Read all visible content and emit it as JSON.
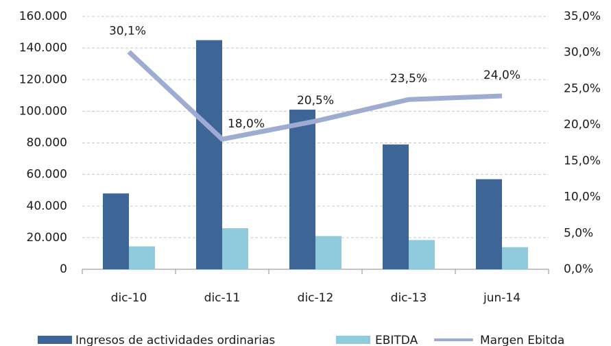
{
  "chart_data": {
    "type": "bar",
    "categories": [
      "dic-10",
      "dic-11",
      "dic-12",
      "dic-13",
      "jun-14"
    ],
    "series": [
      {
        "name": "Ingresos de actividades ordinarias",
        "color": "#3e6598",
        "values": [
          48000,
          145000,
          101000,
          79000,
          57000
        ]
      },
      {
        "name": "EBITDA",
        "color": "#8fcbdd",
        "values": [
          14500,
          26000,
          21000,
          18500,
          14000
        ]
      },
      {
        "name": "Margen Ebitda",
        "color": "#9eacd2",
        "type": "line",
        "axis": "y2",
        "values": [
          30.1,
          18.0,
          20.5,
          23.5,
          24.0
        ],
        "value_labels": [
          "30,1%",
          "18,0%",
          "20,5%",
          "23,5%",
          "24,0%"
        ]
      }
    ],
    "ylim": [
      0,
      160000
    ],
    "yticks": [
      0,
      {
        "value": 20000,
        "label": "20.000"
      },
      {
        "value": 40000,
        "label": "40.000"
      },
      {
        "value": 60000,
        "label": "60.000"
      },
      {
        "value": 80000,
        "label": "80.000"
      },
      {
        "value": 100000,
        "label": "100.000"
      },
      {
        "value": 120000,
        "label": "120.000"
      },
      {
        "value": 140000,
        "label": "140.000"
      },
      {
        "value": 160000,
        "label": "160.000"
      }
    ],
    "y2lim": [
      0,
      35
    ],
    "y2ticks": [
      {
        "value": 0,
        "label": "0,0%"
      },
      {
        "value": 5,
        "label": "5,0%"
      },
      {
        "value": 10,
        "label": "10,0%"
      },
      {
        "value": 15,
        "label": "15,0%"
      },
      {
        "value": 20,
        "label": "20,0%"
      },
      {
        "value": 25,
        "label": "25,0%"
      },
      {
        "value": 30,
        "label": "30,0%"
      },
      {
        "value": 35,
        "label": "35,0%"
      }
    ],
    "grid": true,
    "legend": "bottom"
  }
}
